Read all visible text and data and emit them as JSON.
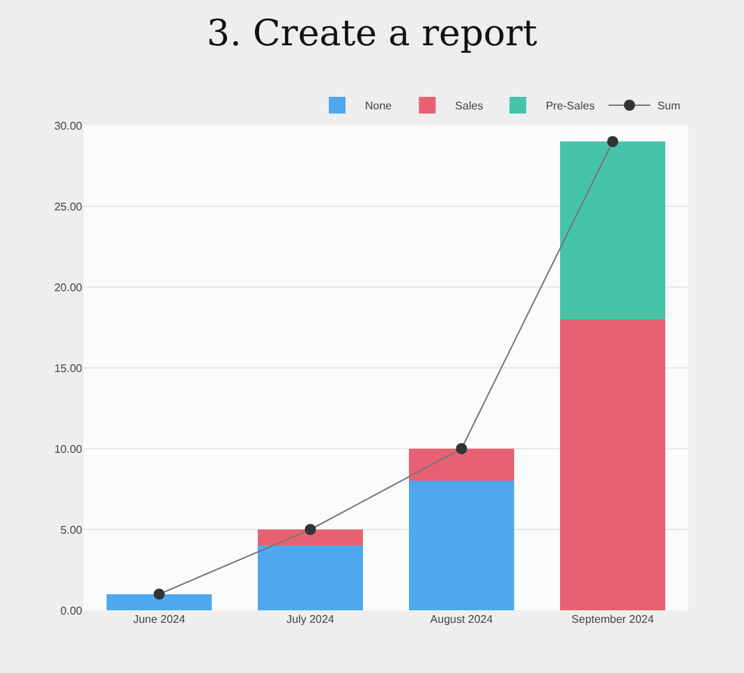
{
  "chart_data": {
    "type": "bar",
    "title": "3. Create a report",
    "stacked": true,
    "categories": [
      "June 2024",
      "July 2024",
      "August 2024",
      "September 2024"
    ],
    "series": [
      {
        "name": "None",
        "color": "#4ea8ee",
        "values": [
          1,
          4,
          8,
          0
        ]
      },
      {
        "name": "Sales",
        "color": "#e86173",
        "values": [
          0,
          1,
          2,
          18
        ]
      },
      {
        "name": "Pre-Sales",
        "color": "#45c4ab",
        "values": [
          0,
          0,
          0,
          11
        ]
      },
      {
        "name": "Sum",
        "type": "line",
        "color": "#333333",
        "values": [
          1,
          5,
          10,
          29
        ],
        "marker": "circle"
      }
    ],
    "ylim": [
      0,
      30
    ],
    "yticks": [
      {
        "value": 0,
        "label": "0.00"
      },
      {
        "value": 5,
        "label": "5.00"
      },
      {
        "value": 10,
        "label": "10.00"
      },
      {
        "value": 15,
        "label": "15.00"
      },
      {
        "value": 20,
        "label": "20.00"
      },
      {
        "value": 25,
        "label": "25.00"
      },
      {
        "value": 30,
        "label": "30.00"
      }
    ],
    "grid": "y",
    "legend": "top right"
  }
}
